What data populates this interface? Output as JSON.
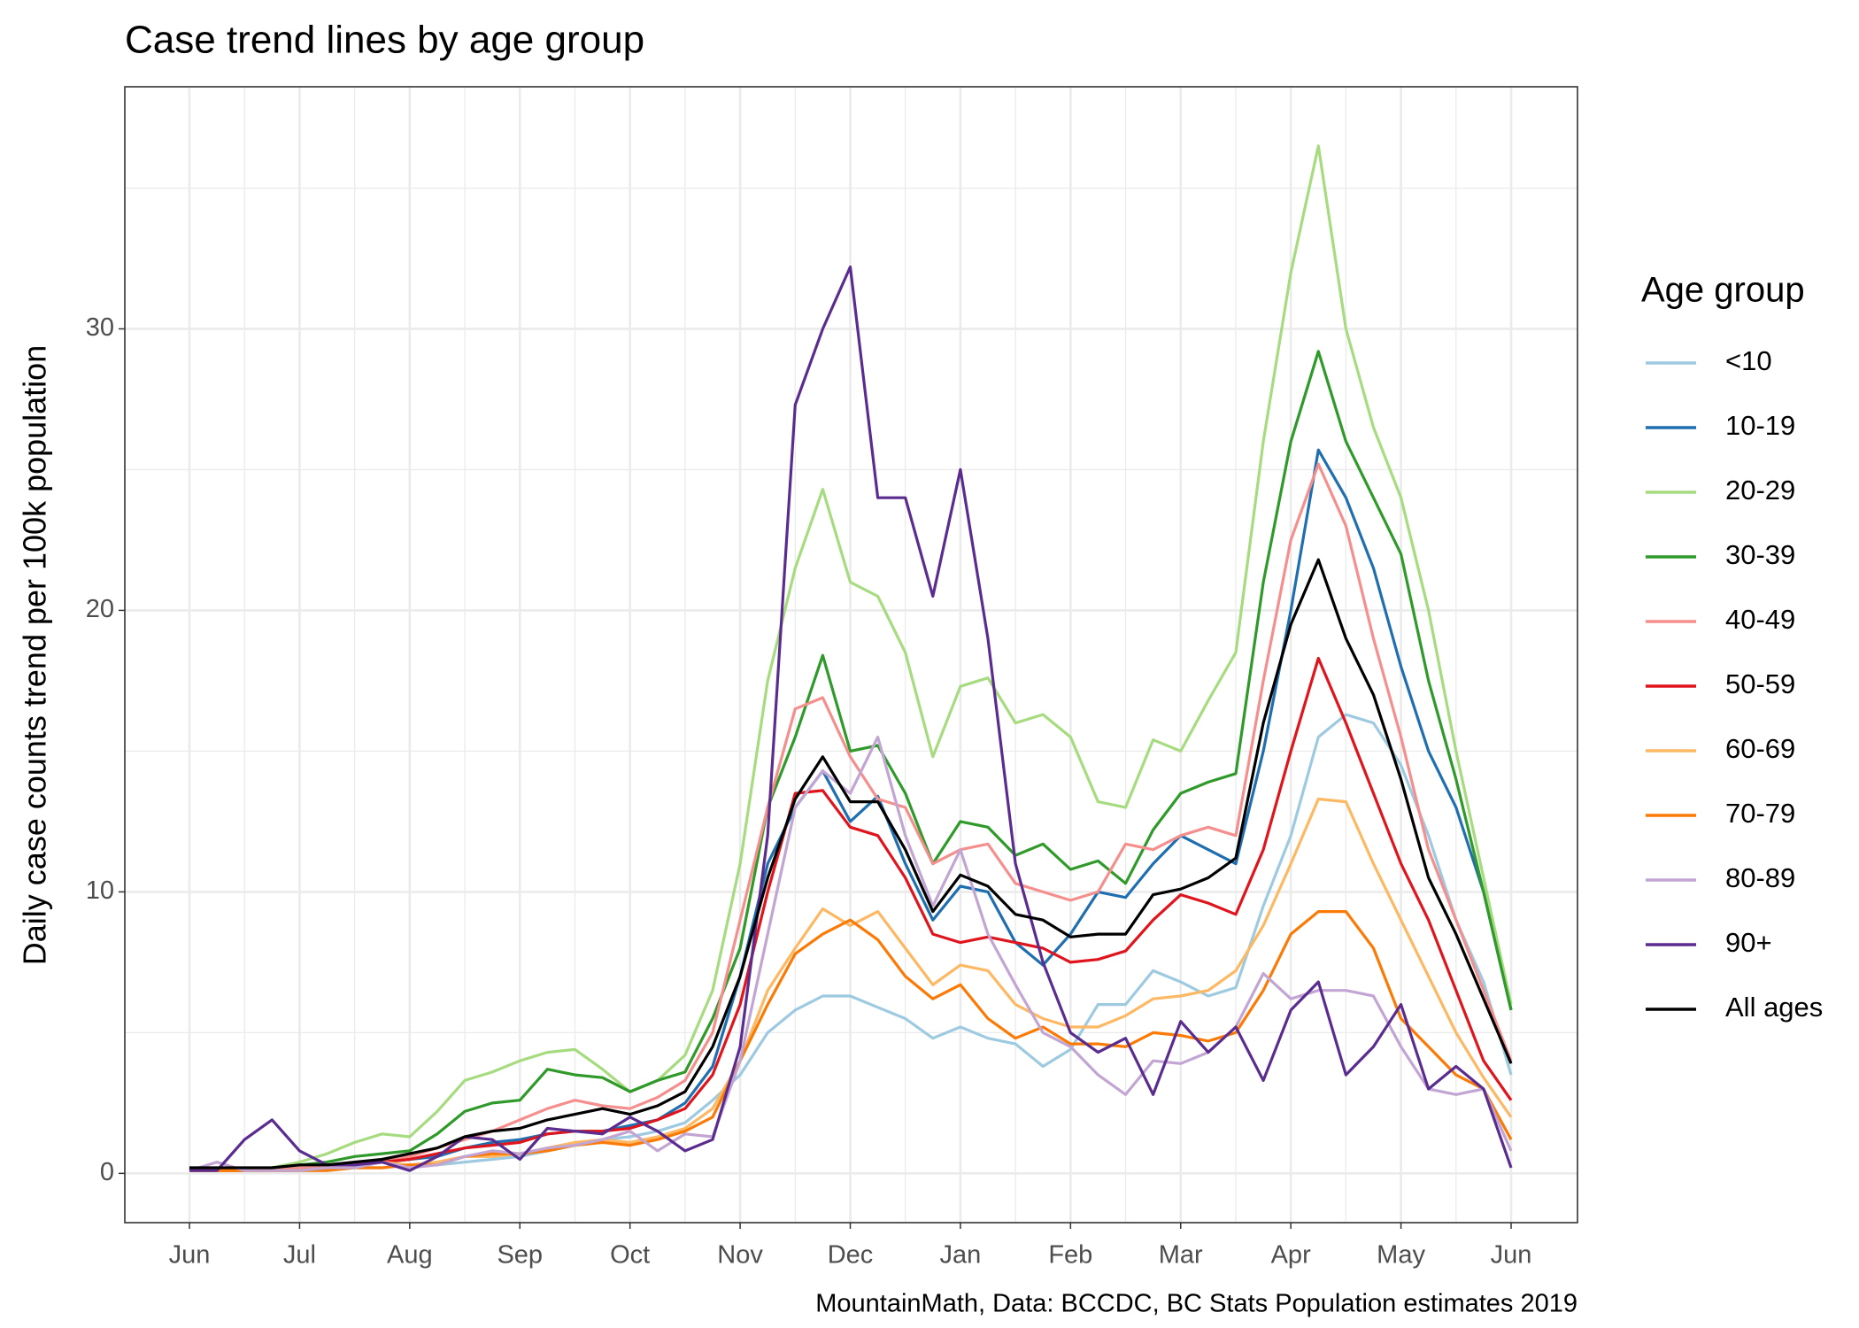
{
  "chart_data": {
    "type": "line",
    "title": "Case trend lines by age group",
    "y_label": "Daily case counts trend per 100k population",
    "legend_title": "Age group",
    "caption": "MountainMath, Data: BCCDC, BC Stats Population estimates 2019",
    "legend": "right",
    "grid": true,
    "categories": [
      "Jun",
      null,
      null,
      null,
      "Jul",
      null,
      null,
      null,
      "Aug",
      null,
      null,
      null,
      "Sep",
      null,
      null,
      null,
      "Oct",
      null,
      null,
      null,
      "Nov",
      null,
      null,
      null,
      "Dec",
      null,
      null,
      null,
      "Jan",
      null,
      null,
      null,
      "Feb",
      null,
      null,
      null,
      "Mar",
      null,
      null,
      null,
      "Apr",
      null,
      null,
      null,
      "May",
      null,
      null,
      null,
      "Jun"
    ],
    "ylim": [
      -1.75,
      38.6
    ],
    "yticks": [
      0,
      10,
      20,
      30
    ],
    "yminor": [
      5,
      15,
      25,
      35
    ],
    "series": [
      {
        "name": "<10",
        "color": "#9ecae1",
        "values": [
          0.2,
          0.1,
          0.1,
          0.1,
          0.1,
          0.1,
          0.2,
          0.2,
          0.3,
          0.3,
          0.4,
          0.5,
          0.6,
          0.8,
          1.0,
          1.2,
          1.3,
          1.5,
          1.8,
          2.6,
          3.5,
          5.0,
          5.8,
          6.3,
          6.3,
          5.9,
          5.5,
          4.8,
          5.2,
          4.8,
          4.6,
          3.8,
          4.4,
          6.0,
          6.0,
          7.2,
          6.8,
          6.3,
          6.6,
          9.5,
          12,
          15.5,
          16.3,
          16,
          14.5,
          12,
          9,
          6.8,
          3.5
        ]
      },
      {
        "name": "10-19",
        "color": "#1f6fb0",
        "values": [
          0.2,
          0.1,
          0.1,
          0.1,
          0.2,
          0.2,
          0.3,
          0.4,
          0.5,
          0.6,
          0.9,
          1.1,
          1.2,
          1.4,
          1.5,
          1.5,
          1.7,
          1.9,
          2.5,
          3.8,
          7,
          11,
          13,
          14.3,
          12.5,
          13.4,
          11,
          9,
          10.2,
          10,
          8.2,
          7.4,
          8.5,
          10,
          9.8,
          11,
          12,
          11.5,
          11,
          15,
          20,
          25.7,
          24,
          21.5,
          18,
          15,
          13,
          10,
          5.8
        ]
      },
      {
        "name": "20-29",
        "color": "#a6db7f",
        "values": [
          0.2,
          0.1,
          0.1,
          0.2,
          0.4,
          0.7,
          1.1,
          1.4,
          1.3,
          2.2,
          3.3,
          3.6,
          4.0,
          4.3,
          4.4,
          3.7,
          2.9,
          3.3,
          4.2,
          6.5,
          11,
          17.5,
          21.5,
          24.3,
          21,
          20.5,
          18.5,
          14.8,
          17.3,
          17.6,
          16,
          16.3,
          15.5,
          13.2,
          13,
          15.4,
          15,
          16.8,
          18.5,
          26,
          32,
          36.5,
          30,
          26.5,
          24,
          20,
          15,
          10.5,
          6
        ]
      },
      {
        "name": "30-39",
        "color": "#2f9a2a",
        "values": [
          0.2,
          0.1,
          0.1,
          0.2,
          0.3,
          0.4,
          0.6,
          0.7,
          0.8,
          1.4,
          2.2,
          2.5,
          2.6,
          3.7,
          3.5,
          3.4,
          2.9,
          3.3,
          3.6,
          5.5,
          8,
          13,
          15.5,
          18.4,
          15,
          15.2,
          13.5,
          11,
          12.5,
          12.3,
          11.3,
          11.7,
          10.8,
          11.1,
          10.3,
          12.2,
          13.5,
          13.9,
          14.2,
          21,
          26,
          29.2,
          26,
          24,
          22,
          17.5,
          14,
          10,
          5.8
        ]
      },
      {
        "name": "40-49",
        "color": "#f58f8e",
        "values": [
          0.1,
          0.1,
          0.1,
          0.1,
          0.2,
          0.2,
          0.3,
          0.5,
          0.6,
          0.9,
          1.2,
          1.5,
          1.9,
          2.3,
          2.6,
          2.4,
          2.3,
          2.7,
          3.3,
          5.0,
          9,
          13,
          16.5,
          16.9,
          14.8,
          13.3,
          13,
          11,
          11.5,
          11.7,
          10.3,
          10,
          9.7,
          10.0,
          11.7,
          11.5,
          12,
          12.3,
          12,
          17.5,
          22.5,
          25.2,
          23,
          19,
          15.5,
          11.5,
          9,
          6.5,
          4
        ]
      },
      {
        "name": "50-59",
        "color": "#e0141c",
        "values": [
          0.1,
          0.1,
          0.1,
          0.1,
          0.1,
          0.2,
          0.3,
          0.4,
          0.5,
          0.7,
          0.9,
          1.0,
          1.1,
          1.4,
          1.5,
          1.5,
          1.6,
          1.9,
          2.3,
          3.5,
          6,
          10,
          13.5,
          13.6,
          12.3,
          12,
          10.5,
          8.5,
          8.2,
          8.4,
          8.2,
          8.0,
          7.5,
          7.6,
          7.9,
          9.0,
          9.9,
          9.6,
          9.2,
          11.5,
          15,
          18.3,
          16,
          13.5,
          11,
          9,
          6.5,
          4,
          2.6
        ]
      },
      {
        "name": "60-69",
        "color": "#fdb863",
        "values": [
          0.1,
          0.1,
          0.1,
          0.1,
          0.1,
          0.2,
          0.3,
          0.4,
          0.3,
          0.4,
          0.6,
          0.6,
          0.7,
          0.9,
          1.1,
          1.2,
          1.1,
          1.3,
          1.6,
          2.3,
          4,
          6.5,
          8,
          9.4,
          8.8,
          9.3,
          8,
          6.7,
          7.4,
          7.2,
          6,
          5.5,
          5.2,
          5.2,
          5.6,
          6.2,
          6.3,
          6.5,
          7.2,
          8.8,
          11,
          13.3,
          13.2,
          11,
          9,
          7,
          5,
          3.4,
          2
        ]
      },
      {
        "name": "70-79",
        "color": "#fb7a05",
        "values": [
          0.1,
          0.1,
          0.1,
          0.1,
          0.1,
          0.1,
          0.2,
          0.2,
          0.3,
          0.3,
          0.6,
          0.7,
          0.7,
          0.8,
          1.0,
          1.1,
          1.0,
          1.2,
          1.5,
          2.0,
          4,
          6,
          7.8,
          8.5,
          9.0,
          8.3,
          7,
          6.2,
          6.7,
          5.5,
          4.8,
          5.2,
          4.6,
          4.6,
          4.5,
          5.0,
          4.9,
          4.7,
          5.0,
          6.5,
          8.5,
          9.3,
          9.3,
          8,
          5.5,
          4.5,
          3.5,
          3,
          1.2
        ]
      },
      {
        "name": "80-89",
        "color": "#c2a5d3",
        "values": [
          0.1,
          0.4,
          0.1,
          0.1,
          0.1,
          0.2,
          0.2,
          0.4,
          0.2,
          0.3,
          0.6,
          0.8,
          0.7,
          0.9,
          1.0,
          1.2,
          1.5,
          0.8,
          1.4,
          1.3,
          4,
          8.5,
          13,
          14.3,
          13.5,
          15.5,
          12,
          9.5,
          11.5,
          8.5,
          6.7,
          5,
          4.5,
          3.5,
          2.8,
          4.0,
          3.9,
          4.3,
          5.2,
          7.1,
          6.2,
          6.5,
          6.5,
          6.3,
          4.5,
          3.0,
          2.8,
          3.0,
          0.8
        ]
      },
      {
        "name": "90+",
        "color": "#5b2c8f",
        "values": [
          0.1,
          0.1,
          1.2,
          1.9,
          0.8,
          0.3,
          0.3,
          0.4,
          0.1,
          0.6,
          1.3,
          1.2,
          0.5,
          1.6,
          1.5,
          1.4,
          2.0,
          1.5,
          0.8,
          1.2,
          4.5,
          12,
          27.3,
          30,
          32.2,
          24,
          24,
          20.5,
          25,
          19,
          11,
          7.5,
          5,
          4.3,
          4.8,
          2.8,
          5.4,
          4.3,
          5.2,
          3.3,
          5.8,
          6.8,
          3.5,
          4.5,
          6.0,
          3.0,
          3.8,
          3.0,
          0.2
        ]
      },
      {
        "name": "All ages",
        "color": "#000000",
        "values": [
          0.2,
          0.2,
          0.2,
          0.2,
          0.3,
          0.3,
          0.4,
          0.5,
          0.7,
          0.9,
          1.3,
          1.5,
          1.6,
          1.9,
          2.1,
          2.3,
          2.1,
          2.4,
          2.9,
          4.5,
          7.0,
          10.5,
          13.3,
          14.8,
          13.2,
          13.2,
          11.5,
          9.3,
          10.6,
          10.2,
          9.2,
          9.0,
          8.4,
          8.5,
          8.5,
          9.9,
          10.1,
          10.5,
          11.2,
          16,
          19.5,
          21.8,
          19,
          17,
          14,
          10.5,
          8.5,
          6.2,
          3.9
        ]
      }
    ]
  }
}
